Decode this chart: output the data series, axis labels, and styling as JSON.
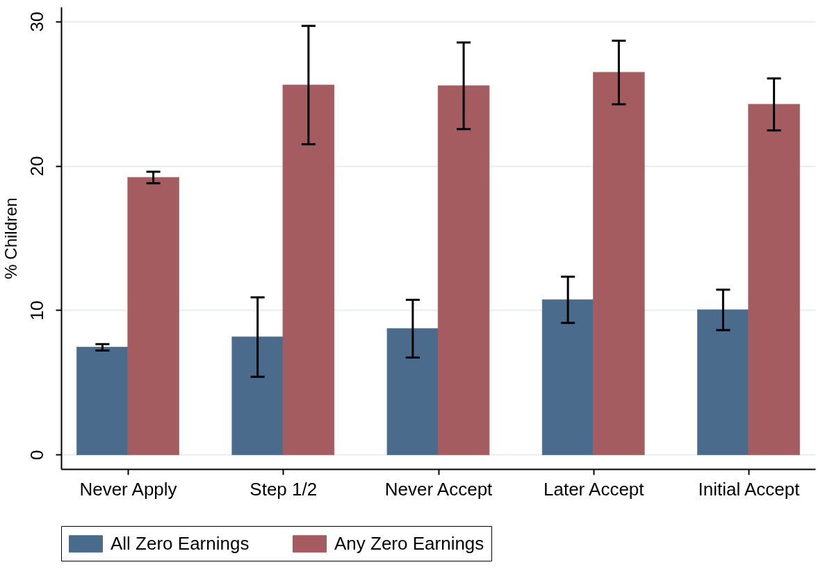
{
  "chart_data": {
    "type": "bar",
    "ylabel": "% Children",
    "categories": [
      "Never Apply",
      "Step 1/2",
      "Never Accept",
      "Later Accept",
      "Initial Accept"
    ],
    "series": [
      {
        "name": "All Zero Earnings",
        "color": "#4a6b8c",
        "values": [
          7.43,
          8.14,
          8.72,
          10.72,
          10.02
        ],
        "errors": [
          0.22,
          2.75,
          2.0,
          1.6,
          1.4
        ]
      },
      {
        "name": "Any Zero Earnings",
        "color": "#a55c60",
        "values": [
          19.19,
          25.59,
          25.54,
          26.46,
          24.25
        ],
        "errors": [
          0.4,
          4.1,
          3.0,
          2.2,
          1.8
        ]
      }
    ],
    "ylim": [
      -1,
      31
    ],
    "yticks": [
      0,
      10,
      20,
      30
    ],
    "grid": "y",
    "legend": "bottom"
  }
}
